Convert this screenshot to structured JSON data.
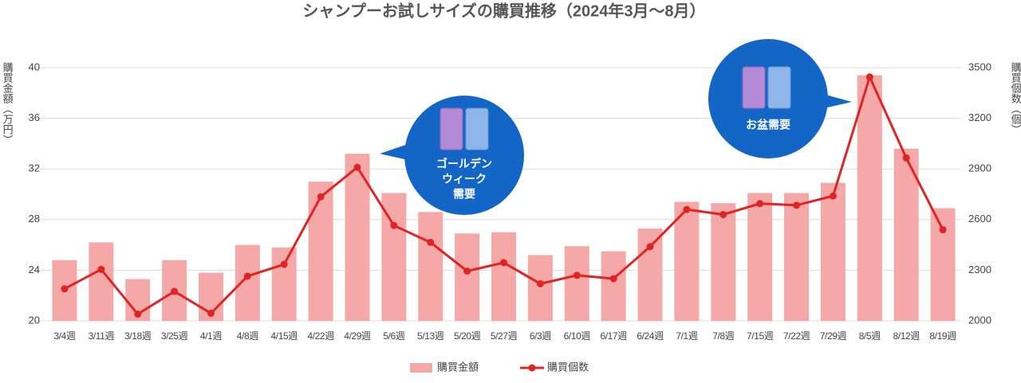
{
  "chart_data": {
    "type": "bar",
    "title": "シャンプーお試しサイズの購買推移（2024年3月〜8月）",
    "y_label": "購買金額（万円）",
    "y2_label": "購買個数（個）",
    "categories": [
      "3/4週",
      "3/11週",
      "3/18週",
      "3/25週",
      "4/1週",
      "4/8週",
      "4/15週",
      "4/22週",
      "4/29週",
      "5/6週",
      "5/13週",
      "5/20週",
      "5/27週",
      "6/3週",
      "6/10週",
      "6/17週",
      "6/24週",
      "7/1週",
      "7/8週",
      "7/15週",
      "7/22週",
      "7/29週",
      "8/5週",
      "8/12週",
      "8/19週"
    ],
    "series": [
      {
        "name": "購買金額",
        "type": "bar",
        "color": "#f4a9a8",
        "values": [
          24.8,
          26.2,
          23.3,
          24.8,
          23.8,
          26.0,
          25.8,
          31.0,
          33.2,
          30.1,
          28.6,
          26.9,
          27.0,
          25.2,
          25.9,
          25.5,
          27.3,
          29.4,
          29.3,
          30.1,
          30.1,
          30.9,
          39.4,
          33.6,
          28.9
        ]
      },
      {
        "name": "購買個数",
        "type": "line",
        "color": "#e02424",
        "axis": "y2",
        "values": [
          2190,
          2305,
          2040,
          2175,
          2045,
          2265,
          2335,
          2735,
          2910,
          2565,
          2465,
          2295,
          2345,
          2220,
          2270,
          2250,
          2440,
          2660,
          2630,
          2695,
          2685,
          2740,
          3445,
          2965,
          2540
        ]
      }
    ],
    "ylim": [
      20,
      40
    ],
    "yticks": [
      20,
      24,
      28,
      32,
      36,
      40
    ],
    "y2lim": [
      2000,
      3500
    ],
    "y2ticks": [
      2000,
      2300,
      2600,
      2900,
      3200,
      3500
    ],
    "grid": true,
    "legend": "bottom",
    "annotations": [
      {
        "lines": [
          "ゴールデン",
          "ウィーク",
          "需要"
        ]
      },
      {
        "lines": [
          "お盆需要"
        ]
      }
    ]
  }
}
